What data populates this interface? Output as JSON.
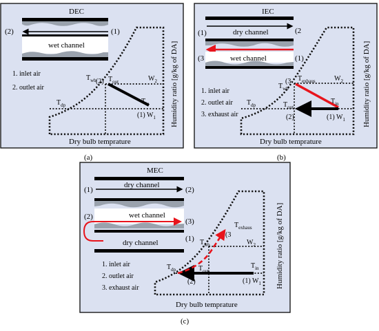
{
  "panels": [
    {
      "id": "a",
      "title": "DEC",
      "caption": "(a)",
      "channels": [
        "wet channel"
      ],
      "ports": {
        "in": "(1)",
        "out": "(2)"
      },
      "legend": [
        "1. inlet air",
        "2. outlet air"
      ],
      "chart_labels": {
        "twb": "T",
        "twb_sub": "wb",
        "tout": "T",
        "tout_sub": "out",
        "tin": "T",
        "tin_sub": "in",
        "tdp": "T",
        "tdp_sub": "dp",
        "w2": "W",
        "w2_sub": "2",
        "w1": "(1) W",
        "w1_sub": "1",
        "p2": "(2)"
      },
      "xlabel": "Dry bulb temprature",
      "ylabel": "Humidity ratio [g/kg of DA]"
    },
    {
      "id": "b",
      "title": "IEC",
      "caption": "(b)",
      "channels": [
        "dry channel",
        "wet channel"
      ],
      "ports": {
        "dry_in": "(1)",
        "dry_out": "(2",
        "wet_in": "(3",
        "wet_out": "(1)"
      },
      "legend": [
        "1. inlet air",
        "2. outlet air",
        "3. exhaust air"
      ],
      "chart_labels": {
        "twb": "T",
        "twb_sub": "wb",
        "texh": "T",
        "texh_sub": "exhaus",
        "tout": "T",
        "tout_sub": "out",
        "tin": "T",
        "tin_sub": "in",
        "tdp": "T",
        "tdp_sub": "dp",
        "w2": "W",
        "w2_sub": "2",
        "w1": "(1) W",
        "w1_sub": "1",
        "p2": "(2)",
        "p3": "(3"
      },
      "xlabel": "Dry bulb temprature",
      "ylabel": "Humidity ratio [g/kg of DA]"
    },
    {
      "id": "c",
      "title": "MEC",
      "caption": "(c)",
      "channels": [
        "dry channel",
        "wet channel",
        "dry channel"
      ],
      "ports": {
        "top_in": "(1)",
        "top_out": "(2)",
        "wet_in": "(2)",
        "wet_out": "(3)",
        "bot_out": "(1)"
      },
      "legend": [
        "1. inlet air",
        "2. outlet air",
        "3. exhaust air"
      ],
      "chart_labels": {
        "twb": "T",
        "twb_sub": "wb",
        "texh": "T",
        "texh_sub": "exhaus",
        "tout": "T",
        "tout_sub": "out",
        "tin": "T",
        "tin_sub": "in",
        "tdp": "T",
        "tdp_sub": "dp",
        "w2": "W",
        "w2_sub": "2",
        "w1": "(1) W",
        "w1_sub": "1",
        "p2": "(2)",
        "p3": "(3"
      },
      "xlabel": "Dry bulb temprature",
      "ylabel": "Humidity ratio [g/kg of DA]"
    }
  ],
  "colors": {
    "panel_bg": "#dbe1f1",
    "process_red": "#e8141c",
    "process_black": "#000000"
  }
}
